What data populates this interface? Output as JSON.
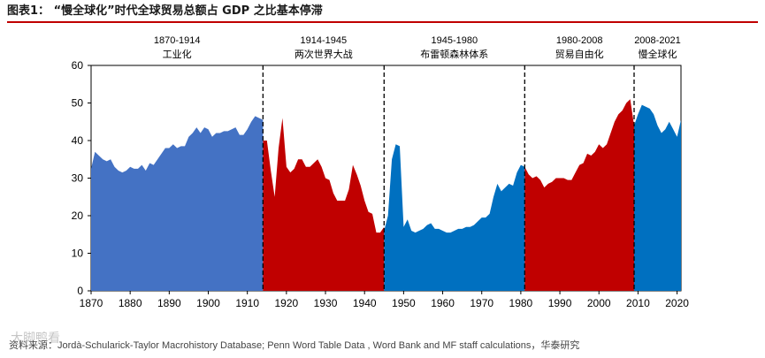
{
  "figure": {
    "title": "图表1： “慢全球化”时代全球贸易总额占 GDP 之比基本停滞",
    "source": "资料来源：Jordà-Schularick-Taylor Macrohistory Database; Penn Word Table Data , Word Bank and MF staff calculations，华泰研究",
    "watermark": "大脚鸭看"
  },
  "chart_data": {
    "type": "area",
    "title": "",
    "xlabel": "",
    "ylabel": "",
    "xlim": [
      1870,
      2021
    ],
    "ylim": [
      0,
      60
    ],
    "xticks": [
      1870,
      1880,
      1890,
      1900,
      1910,
      1920,
      1930,
      1940,
      1950,
      1960,
      1970,
      1980,
      1990,
      2000,
      2010,
      2020
    ],
    "yticks": [
      0,
      10,
      20,
      30,
      40,
      50,
      60
    ],
    "grid": false,
    "eras": [
      {
        "range_label": "1870-1914",
        "name": "工业化",
        "start": 1870,
        "end": 1914
      },
      {
        "range_label": "1914-1945",
        "name": "两次世界大战",
        "start": 1914,
        "end": 1945
      },
      {
        "range_label": "1945-1980",
        "name": "布雷顿森林体系",
        "start": 1945,
        "end": 1981
      },
      {
        "range_label": "1980-2008",
        "name": "贸易自由化",
        "start": 1981,
        "end": 2009
      },
      {
        "range_label": "2008-2021",
        "name": "慢全球化",
        "start": 2009,
        "end": 2021
      }
    ],
    "era_dividers": [
      1914,
      1945,
      1981,
      2009
    ],
    "series": [
      {
        "name": "1870-1914",
        "color": "#4472C4",
        "x": [
          1870,
          1871,
          1872,
          1873,
          1874,
          1875,
          1876,
          1877,
          1878,
          1879,
          1880,
          1881,
          1882,
          1883,
          1884,
          1885,
          1886,
          1887,
          1888,
          1889,
          1890,
          1891,
          1892,
          1893,
          1894,
          1895,
          1896,
          1897,
          1898,
          1899,
          1900,
          1901,
          1902,
          1903,
          1904,
          1905,
          1906,
          1907,
          1908,
          1909,
          1910,
          1911,
          1912,
          1913,
          1914
        ],
        "y": [
          32.5,
          37,
          36,
          35,
          34.5,
          35,
          33,
          32,
          31.5,
          32,
          33,
          32.5,
          32.5,
          33.5,
          32,
          34,
          33.5,
          35,
          36.5,
          38,
          38,
          39,
          38,
          38.5,
          38.5,
          41,
          42,
          43.5,
          42,
          43.5,
          43,
          41,
          42,
          42,
          42.5,
          42.5,
          43,
          43.5,
          41.5,
          41.5,
          43,
          45,
          46.5,
          46,
          45.5
        ]
      },
      {
        "name": "1914-1945",
        "color": "#C00000",
        "x": [
          1914,
          1915,
          1916,
          1917,
          1918,
          1919,
          1920,
          1921,
          1922,
          1923,
          1924,
          1925,
          1926,
          1927,
          1928,
          1929,
          1930,
          1931,
          1932,
          1933,
          1934,
          1935,
          1936,
          1937,
          1938,
          1939,
          1940,
          1941,
          1942,
          1943,
          1944,
          1945
        ],
        "y": [
          40,
          40,
          32,
          25,
          38,
          46,
          33,
          31.5,
          32.5,
          35,
          35,
          33,
          33,
          34,
          35,
          33,
          30,
          29.5,
          26,
          24,
          24,
          24,
          27,
          33.5,
          31,
          28,
          24,
          21,
          20.5,
          15.5,
          15.5,
          17
        ]
      },
      {
        "name": "1945-1980",
        "color": "#0070C0",
        "x": [
          1945,
          1946,
          1947,
          1948,
          1949,
          1950,
          1951,
          1952,
          1953,
          1954,
          1955,
          1956,
          1957,
          1958,
          1959,
          1960,
          1961,
          1962,
          1963,
          1964,
          1965,
          1966,
          1967,
          1968,
          1969,
          1970,
          1971,
          1972,
          1973,
          1974,
          1975,
          1976,
          1977,
          1978,
          1979,
          1980,
          1981
        ],
        "y": [
          16,
          20,
          35,
          39,
          38.5,
          17,
          19,
          16,
          15.5,
          16,
          16.5,
          17.5,
          18,
          16.5,
          16.5,
          16,
          15.5,
          15.5,
          16,
          16.5,
          16.5,
          17,
          17,
          17.5,
          18.5,
          19.5,
          19.5,
          20.5,
          25,
          28.5,
          26.5,
          27.5,
          28.5,
          28,
          31.5,
          33.5,
          33
        ]
      },
      {
        "name": "1980-2008",
        "color": "#C00000",
        "x": [
          1981,
          1982,
          1983,
          1984,
          1985,
          1986,
          1987,
          1988,
          1989,
          1990,
          1991,
          1992,
          1993,
          1994,
          1995,
          1996,
          1997,
          1998,
          1999,
          2000,
          2001,
          2002,
          2003,
          2004,
          2005,
          2006,
          2007,
          2008,
          2009
        ],
        "y": [
          33,
          31,
          30,
          30.5,
          29.5,
          27.5,
          28.5,
          29,
          30,
          30,
          30,
          29.5,
          29.5,
          31.5,
          33.5,
          34,
          36.5,
          36,
          37,
          39,
          38,
          39,
          42,
          45,
          47,
          48,
          50,
          51,
          44
        ]
      },
      {
        "name": "2008-2021",
        "color": "#0070C0",
        "x": [
          2009,
          2010,
          2011,
          2012,
          2013,
          2014,
          2015,
          2016,
          2017,
          2018,
          2019,
          2020,
          2021
        ],
        "y": [
          44,
          47,
          49.5,
          49,
          48.5,
          47,
          44,
          42,
          43,
          45,
          43,
          41,
          45.5
        ]
      }
    ]
  }
}
